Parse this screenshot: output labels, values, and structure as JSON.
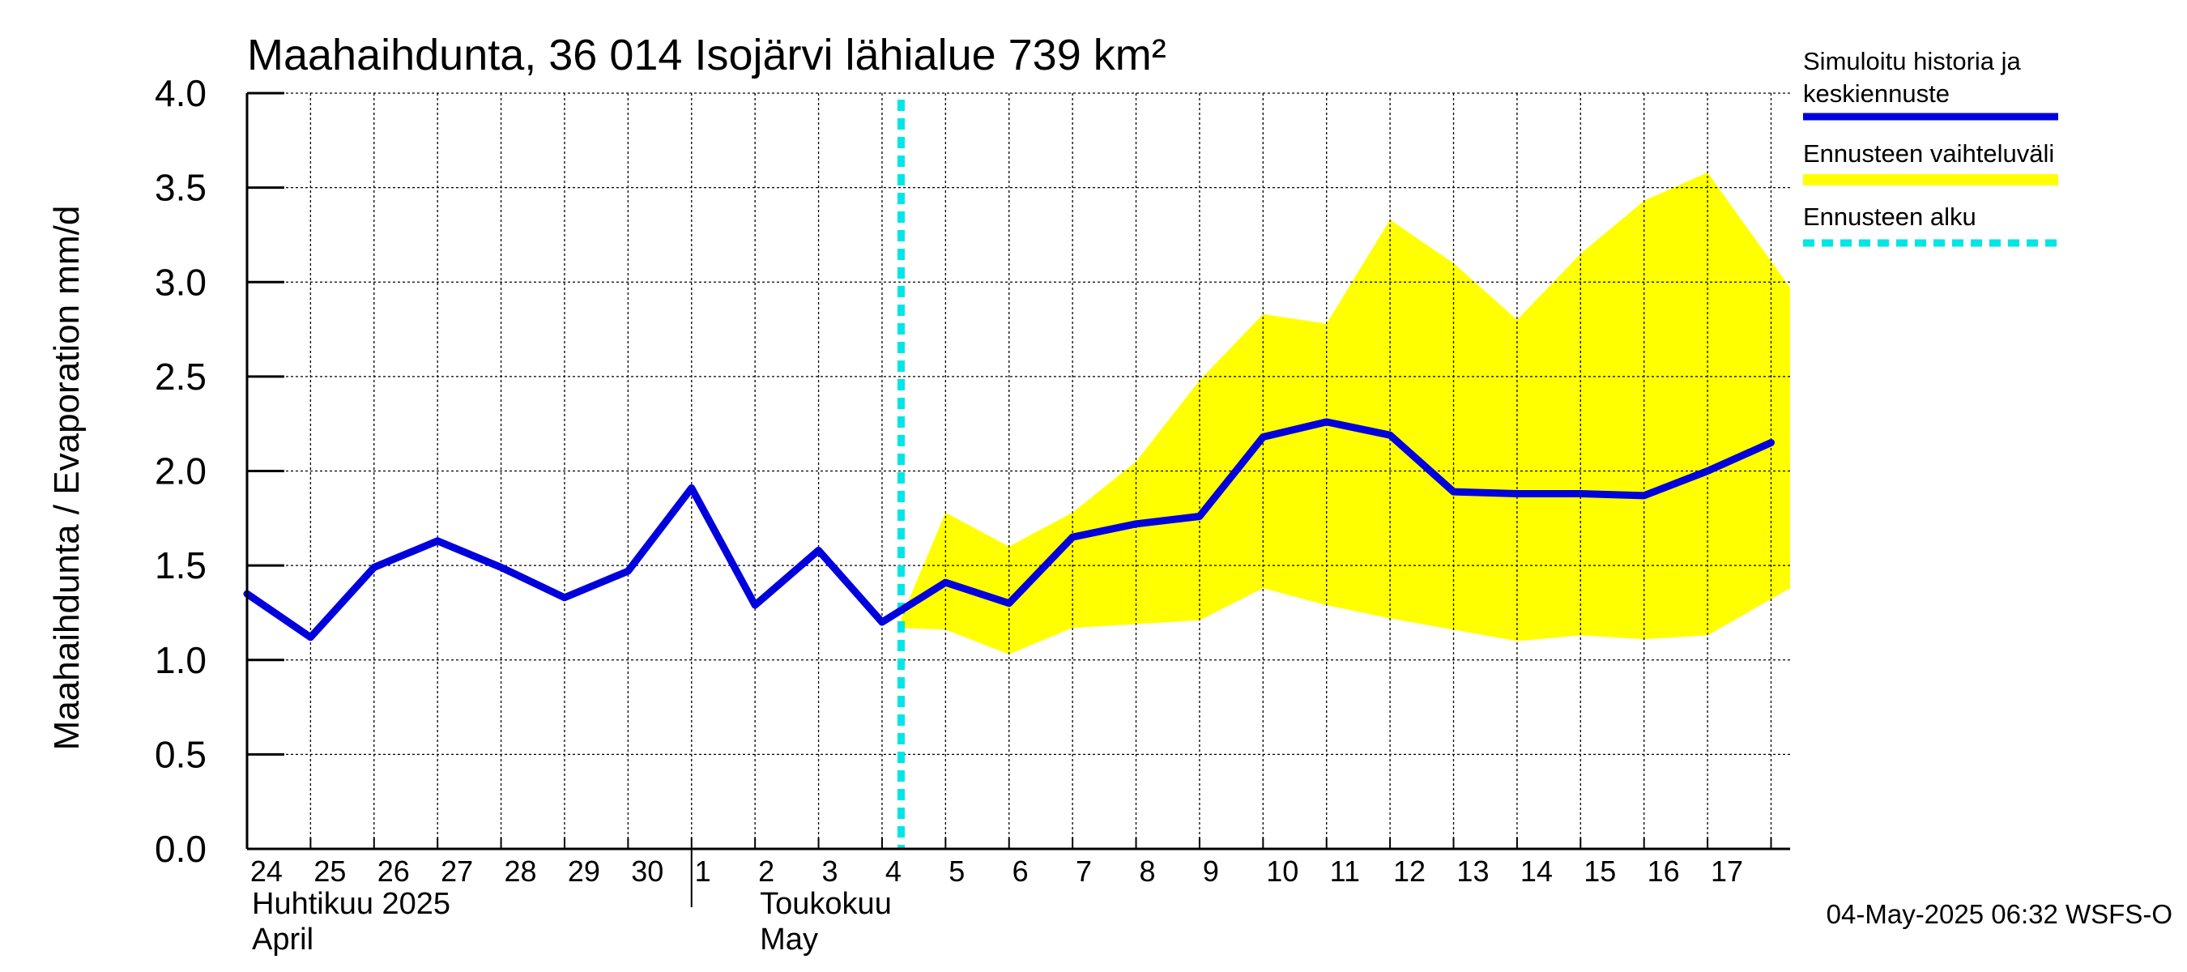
{
  "chart_data": {
    "type": "line",
    "title": "Maahaihdunta, 36 014 Isojärvi lähialue 739 km²",
    "ylabel": "Maahaihdunta / Evaporation   mm/d",
    "ylim": [
      0,
      4.0
    ],
    "yticks": [
      "0.0",
      "0.5",
      "1.0",
      "1.5",
      "2.0",
      "2.5",
      "3.0",
      "3.5",
      "4.0"
    ],
    "ytick_values": [
      0,
      0.5,
      1.0,
      1.5,
      2.0,
      2.5,
      3.0,
      3.5,
      4.0
    ],
    "xlim": [
      -0.5,
      23.8
    ],
    "grid": true,
    "x_tick_labels": [
      "24",
      "25",
      "26",
      "27",
      "28",
      "29",
      "30",
      "1",
      "2",
      "3",
      "4",
      "5",
      "6",
      "7",
      "8",
      "9",
      "10",
      "11",
      "12",
      "13",
      "14",
      "15",
      "16",
      "17"
    ],
    "months": [
      {
        "line1": "Huhtikuu  2025",
        "line2": "April",
        "x": -0.5
      },
      {
        "line1": "Toukokuu",
        "line2": "May",
        "x": 7.5
      }
    ],
    "month_separator_x": 6.5,
    "forecast_start_x": 9.8,
    "series": [
      {
        "name": "Simuloitu historia ja keskiennuste",
        "color": "#0000dd",
        "x": [
          -0.5,
          0.5,
          1.5,
          2.5,
          3.5,
          4.5,
          5.5,
          6.5,
          7.5,
          8.5,
          9.5,
          10.5,
          11.5,
          12.5,
          13.5,
          14.5,
          15.5,
          16.5,
          17.5,
          18.5,
          19.5,
          20.5,
          21.5,
          22.5,
          23.5
        ],
        "values": [
          1.35,
          1.12,
          1.49,
          1.63,
          1.49,
          1.33,
          1.47,
          1.91,
          1.29,
          1.58,
          1.2,
          1.41,
          1.3,
          1.65,
          1.72,
          1.76,
          2.18,
          2.26,
          2.19,
          1.89,
          1.88,
          1.88,
          1.87,
          2.0,
          2.15
        ]
      }
    ],
    "band": {
      "name": "Ennusteen vaihteluväli",
      "color": "#ffff00",
      "x": [
        9.8,
        10.5,
        11.5,
        12.5,
        13.5,
        14.5,
        15.5,
        16.5,
        17.5,
        18.5,
        19.5,
        20.5,
        21.5,
        22.5,
        23.8
      ],
      "upper": [
        1.22,
        1.78,
        1.6,
        1.78,
        2.05,
        2.48,
        2.83,
        2.78,
        3.33,
        3.1,
        2.8,
        3.15,
        3.43,
        3.58,
        2.97
      ],
      "lower": [
        1.17,
        1.16,
        1.03,
        1.17,
        1.19,
        1.21,
        1.38,
        1.29,
        1.22,
        1.16,
        1.1,
        1.13,
        1.11,
        1.13,
        1.38
      ]
    },
    "forecast_line": {
      "name": "Ennusteen alku",
      "color": "#00e5e5"
    },
    "legend_position": "right",
    "legend": [
      {
        "label_line1": "Simuloitu historia ja",
        "label_line2": "keskiennuste",
        "color": "#0000dd",
        "style": "solid"
      },
      {
        "label_line1": "Ennusteen vaihteluväli",
        "label_line2": "",
        "color": "#ffff00",
        "style": "solid"
      },
      {
        "label_line1": "Ennusteen alku",
        "label_line2": "",
        "color": "#00e5e5",
        "style": "dashed"
      }
    ],
    "timestamp": "04-May-2025 06:32 WSFS-O"
  }
}
